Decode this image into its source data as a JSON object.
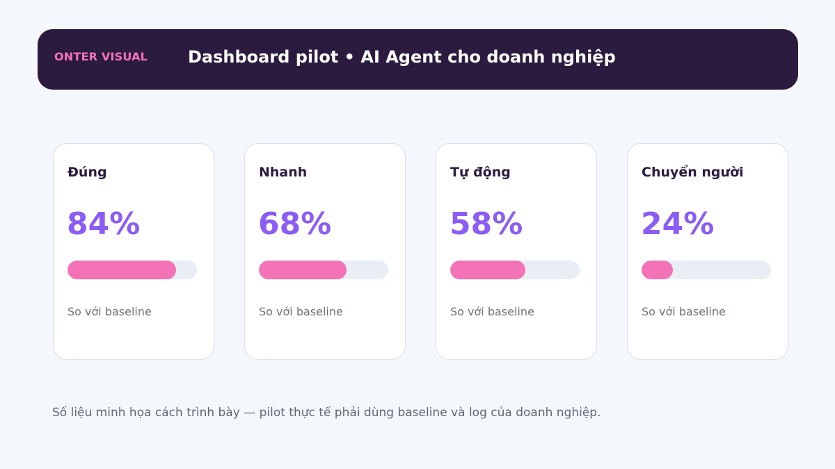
{
  "header": {
    "brand": "ONTER VISUAL",
    "title": "Dashboard pilot • AI Agent cho doanh nghiệp"
  },
  "cards": [
    {
      "label": "Đúng",
      "value": "84%",
      "progress": 0.84,
      "note": "So với baseline"
    },
    {
      "label": "Nhanh",
      "value": "68%",
      "progress": 0.68,
      "note": "So với baseline"
    },
    {
      "label": "Tự động",
      "value": "58%",
      "progress": 0.58,
      "note": "So với baseline"
    },
    {
      "label": "Chuyển người",
      "value": "24%",
      "progress": 0.24,
      "note": "So với baseline"
    }
  ],
  "footnote": "Số liệu minh họa cách trình bày — pilot thực tế phải dùng baseline và log của doanh nghiệp.",
  "colors": {
    "header_bg": "#2b1b3f",
    "brand": "#f472b6",
    "value": "#8b5cf6",
    "bar_fill": "#f472b6",
    "bar_track": "#e9edf4"
  }
}
